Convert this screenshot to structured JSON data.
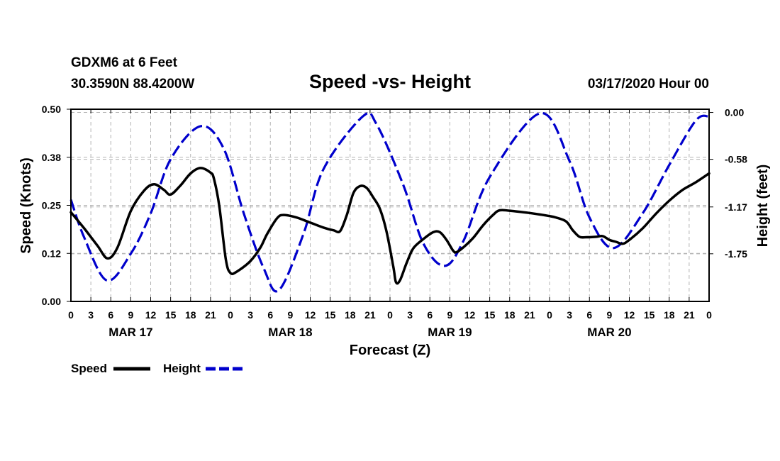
{
  "header": {
    "station": "GDXM6 at 6 Feet",
    "coords": "30.3590N 88.4200W",
    "title": "Speed -vs- Height",
    "datetime": "03/17/2020 Hour 00"
  },
  "colors": {
    "speed": "#000000",
    "height": "#0000cc",
    "grid": "#b4b4b4"
  },
  "chart_data": {
    "type": "line",
    "title": "Speed -vs- Height",
    "xlabel": "Forecast (Z)",
    "ylabel_left": "Speed (Knots)",
    "ylabel_right": "Height (feet)",
    "x_range_hours": [
      0,
      96
    ],
    "ylim_left": [
      0.0,
      0.5
    ],
    "ylim_right": [
      -2.34,
      0.04
    ],
    "left_ticks": [
      "0.00",
      "0.12",
      "0.25",
      "0.38",
      "0.50"
    ],
    "left_tick_values": [
      0.0,
      0.125,
      0.25,
      0.375,
      0.5
    ],
    "right_ticks": [
      "0.00",
      "-0.58",
      "-1.17",
      "-1.75"
    ],
    "right_tick_values": [
      0.0,
      -0.58,
      -1.17,
      -1.75
    ],
    "x_ticks": [
      "0",
      "3",
      "6",
      "9",
      "12",
      "15",
      "18",
      "21",
      "0",
      "3",
      "6",
      "9",
      "12",
      "15",
      "18",
      "21",
      "0",
      "3",
      "6",
      "9",
      "12",
      "15",
      "18",
      "21",
      "0",
      "3",
      "6",
      "9",
      "12",
      "15",
      "18",
      "21",
      "0"
    ],
    "days": [
      {
        "label": "MAR 17",
        "center_hour": 9
      },
      {
        "label": "MAR 18",
        "center_hour": 33
      },
      {
        "label": "MAR 19",
        "center_hour": 57
      },
      {
        "label": "MAR 20",
        "center_hour": 81
      }
    ],
    "grid": true,
    "series": [
      {
        "name": "Speed",
        "axis": "left",
        "style": "solid",
        "points": [
          [
            0,
            0.232
          ],
          [
            2,
            0.19
          ],
          [
            4,
            0.145
          ],
          [
            5.5,
            0.112
          ],
          [
            7,
            0.14
          ],
          [
            9,
            0.235
          ],
          [
            11,
            0.288
          ],
          [
            12.5,
            0.305
          ],
          [
            14,
            0.29
          ],
          [
            15,
            0.278
          ],
          [
            16.5,
            0.302
          ],
          [
            18,
            0.333
          ],
          [
            19.5,
            0.347
          ],
          [
            21,
            0.335
          ],
          [
            21.5,
            0.32
          ],
          [
            22.3,
            0.25
          ],
          [
            23.3,
            0.11
          ],
          [
            24,
            0.074
          ],
          [
            25,
            0.078
          ],
          [
            27,
            0.105
          ],
          [
            28.5,
            0.14
          ],
          [
            29.5,
            0.175
          ],
          [
            31,
            0.216
          ],
          [
            32,
            0.225
          ],
          [
            34,
            0.218
          ],
          [
            36,
            0.205
          ],
          [
            38,
            0.192
          ],
          [
            39.5,
            0.185
          ],
          [
            40.5,
            0.183
          ],
          [
            41.5,
            0.225
          ],
          [
            42.5,
            0.282
          ],
          [
            43.5,
            0.3
          ],
          [
            44.5,
            0.295
          ],
          [
            45.5,
            0.27
          ],
          [
            46.5,
            0.24
          ],
          [
            47.5,
            0.18
          ],
          [
            48.5,
            0.09
          ],
          [
            48.9,
            0.05
          ],
          [
            49.5,
            0.055
          ],
          [
            50.5,
            0.1
          ],
          [
            51.5,
            0.138
          ],
          [
            53,
            0.162
          ],
          [
            54.5,
            0.18
          ],
          [
            55.5,
            0.18
          ],
          [
            56.5,
            0.16
          ],
          [
            57.5,
            0.132
          ],
          [
            58,
            0.128
          ],
          [
            59,
            0.14
          ],
          [
            60.5,
            0.165
          ],
          [
            62,
            0.198
          ],
          [
            63.5,
            0.225
          ],
          [
            64.5,
            0.237
          ],
          [
            66,
            0.236
          ],
          [
            69,
            0.23
          ],
          [
            72,
            0.222
          ],
          [
            73,
            0.218
          ],
          [
            74.5,
            0.208
          ],
          [
            75.5,
            0.185
          ],
          [
            76.5,
            0.168
          ],
          [
            77.5,
            0.167
          ],
          [
            79,
            0.168
          ],
          [
            80,
            0.17
          ],
          [
            81,
            0.16
          ],
          [
            82,
            0.155
          ],
          [
            83,
            0.15
          ],
          [
            84,
            0.16
          ],
          [
            86,
            0.19
          ],
          [
            88,
            0.228
          ],
          [
            90,
            0.262
          ],
          [
            92,
            0.29
          ],
          [
            94,
            0.31
          ],
          [
            96,
            0.333
          ]
        ]
      },
      {
        "name": "Height",
        "axis": "right",
        "style": "dashed",
        "amplitude_ft": 1.14,
        "model": "harmonic fit through highs and lows",
        "points": [
          [
            0,
            -1.08
          ],
          [
            2,
            -1.55
          ],
          [
            5.4,
            -2.08
          ],
          [
            9,
            -1.75
          ],
          [
            12,
            -1.25
          ],
          [
            15,
            -0.58
          ],
          [
            19.5,
            -0.17
          ],
          [
            23,
            -0.45
          ],
          [
            26,
            -1.25
          ],
          [
            29,
            -1.93
          ],
          [
            31.3,
            -2.2
          ],
          [
            35,
            -1.5
          ],
          [
            38,
            -0.7
          ],
          [
            43.9,
            -0.05
          ],
          [
            46,
            -0.15
          ],
          [
            50,
            -0.9
          ],
          [
            53,
            -1.62
          ],
          [
            56.2,
            -1.9
          ],
          [
            59,
            -1.6
          ],
          [
            63,
            -0.8
          ],
          [
            70.6,
            -0.01
          ],
          [
            75,
            -0.6
          ],
          [
            78,
            -1.3
          ],
          [
            81.6,
            -1.68
          ],
          [
            86,
            -1.25
          ],
          [
            90,
            -0.65
          ],
          [
            94,
            -0.1
          ],
          [
            96,
            -0.05
          ]
        ]
      }
    ],
    "legend": [
      {
        "label": "Speed",
        "style": "solid"
      },
      {
        "label": "Height",
        "style": "dashed"
      }
    ]
  }
}
